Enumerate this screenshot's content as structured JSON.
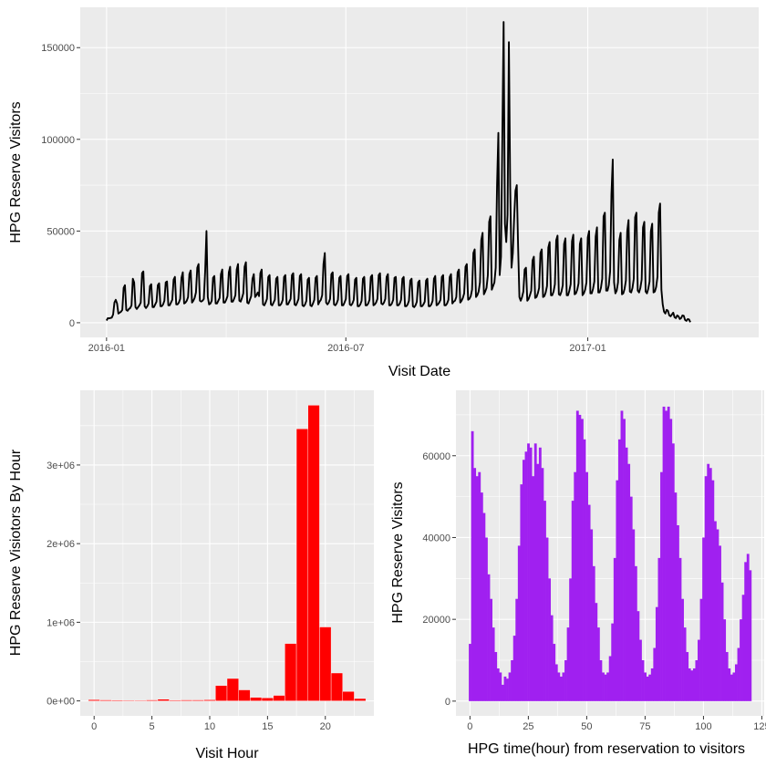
{
  "chart_data": [
    {
      "type": "line",
      "title": "",
      "xlabel": "Visit Date",
      "ylabel": "HPG Reserve Visitors",
      "xlim": [
        "2015-12-12",
        "2017-05-11"
      ],
      "ylim": [
        -8000,
        172000
      ],
      "x_ticks": [
        {
          "date": "2016-01-01",
          "label": "2016-01"
        },
        {
          "date": "2016-07-01",
          "label": "2016-07"
        },
        {
          "date": "2017-01-01",
          "label": "2017-01"
        }
      ],
      "y_ticks": [
        {
          "value": 0,
          "label": "0"
        },
        {
          "value": 50000,
          "label": "50000"
        },
        {
          "value": 100000,
          "label": "100000"
        },
        {
          "value": 150000,
          "label": "150000"
        }
      ],
      "series": [
        {
          "name": "HPG Reserve Visitors",
          "color": "#000000",
          "start_date": "2016-01-01",
          "values": [
            1200,
            2500,
            2400,
            2600,
            2800,
            4500,
            11000,
            12500,
            10500,
            5000,
            5500,
            6000,
            7000,
            19000,
            20500,
            7000,
            6500,
            7500,
            8000,
            9500,
            24000,
            22000,
            8500,
            7500,
            8500,
            9500,
            11000,
            27000,
            28000,
            9000,
            8000,
            9000,
            10500,
            20000,
            21000,
            8500,
            8500,
            10000,
            11500,
            20500,
            21500,
            9000,
            9000,
            10000,
            12000,
            22000,
            22500,
            9500,
            9500,
            11000,
            12500,
            23500,
            25000,
            10000,
            10000,
            11000,
            13000,
            24500,
            27500,
            10500,
            11000,
            12000,
            14000,
            26500,
            28500,
            11000,
            12000,
            13500,
            16500,
            30000,
            32000,
            12000,
            11500,
            12000,
            13000,
            28000,
            50000,
            14000,
            10000,
            10500,
            12000,
            24500,
            25500,
            10500,
            10500,
            12000,
            13500,
            26500,
            29000,
            11000,
            11000,
            12500,
            14500,
            27500,
            30500,
            11500,
            11500,
            13000,
            15000,
            29000,
            32000,
            12000,
            11500,
            13500,
            16000,
            30500,
            33000,
            11000,
            10500,
            12500,
            14500,
            24000,
            26500,
            14000,
            15000,
            16500,
            14500,
            27000,
            29000,
            10000,
            9500,
            11000,
            13000,
            25000,
            26000,
            10000,
            9500,
            11000,
            12500,
            24000,
            25000,
            9500,
            9500,
            10500,
            12500,
            25000,
            26000,
            10000,
            10000,
            11500,
            13000,
            26000,
            27000,
            10000,
            9500,
            11000,
            13000,
            25500,
            26500,
            9500,
            9000,
            10000,
            12000,
            23500,
            24500,
            9500,
            9000,
            10500,
            12500,
            24500,
            25500,
            10000,
            11500,
            12500,
            15000,
            32000,
            38000,
            11000,
            10000,
            11000,
            13000,
            26500,
            27500,
            10000,
            9500,
            10500,
            12500,
            24500,
            25500,
            9500,
            9500,
            11000,
            13000,
            25500,
            26500,
            10000,
            9500,
            10500,
            12500,
            23500,
            24500,
            9000,
            9000,
            10000,
            12000,
            24000,
            25000,
            9500,
            9500,
            10500,
            12500,
            25000,
            26000,
            9500,
            10000,
            11000,
            13000,
            26000,
            27000,
            10500,
            10000,
            11000,
            13000,
            25000,
            26500,
            9500,
            9500,
            10500,
            12500,
            24500,
            25000,
            9500,
            9500,
            10500,
            12500,
            24000,
            25000,
            9000,
            9000,
            10000,
            12000,
            23000,
            24000,
            9000,
            8500,
            9500,
            11500,
            22000,
            23000,
            9000,
            9000,
            10000,
            11500,
            23000,
            24000,
            9000,
            9000,
            10000,
            12000,
            24000,
            25500,
            9500,
            10000,
            11000,
            12500,
            25000,
            26000,
            9500,
            9500,
            10500,
            12500,
            25000,
            26500,
            10500,
            11500,
            12000,
            14000,
            27500,
            29000,
            11000,
            12000,
            13500,
            16000,
            30500,
            32000,
            12500,
            13000,
            14500,
            18000,
            38000,
            40000,
            14000,
            15000,
            17000,
            22000,
            45000,
            49000,
            15500,
            17000,
            19000,
            26000,
            55000,
            58000,
            18000,
            20000,
            22000,
            30000,
            75000,
            103500,
            26000,
            36000,
            100000,
            164000,
            54000,
            44000,
            59000,
            153000,
            74000,
            30000,
            38000,
            57000,
            72000,
            75000,
            42000,
            14000,
            12000,
            14000,
            17000,
            29000,
            30000,
            12000,
            13000,
            15000,
            17500,
            34000,
            36000,
            13500,
            14000,
            16000,
            19000,
            38000,
            40000,
            14000,
            14500,
            16500,
            20000,
            41000,
            44000,
            15000,
            15000,
            17000,
            21000,
            45000,
            47500,
            15500,
            15000,
            17000,
            20500,
            43000,
            46000,
            15000,
            15000,
            17500,
            21000,
            44500,
            48000,
            15500,
            16000,
            18000,
            21500,
            43000,
            46000,
            15000,
            16000,
            18000,
            22000,
            46500,
            50000,
            16000,
            16000,
            18500,
            22500,
            47000,
            52000,
            16500,
            16500,
            19000,
            24000,
            58000,
            60000,
            17500,
            17500,
            20500,
            28000,
            70000,
            89000,
            22000,
            16000,
            17500,
            22000,
            45000,
            49000,
            15500,
            16000,
            18500,
            23000,
            50000,
            56000,
            17000,
            16500,
            19000,
            24000,
            57500,
            60000,
            17500,
            16500,
            19000,
            23500,
            52000,
            55000,
            17000,
            16000,
            18500,
            22500,
            50000,
            54000,
            16500,
            17000,
            19500,
            25000,
            60000,
            65000,
            18000,
            10000,
            6000,
            5000,
            7000,
            6500,
            4000,
            3500,
            4500,
            5500,
            3000,
            2500,
            4000,
            3500,
            2000,
            2500,
            4000,
            3800,
            1500,
            1000,
            2000,
            1800,
            300
          ]
        }
      ]
    },
    {
      "type": "bar",
      "title": "",
      "xlabel": "Visit Hour",
      "ylabel": "HPG Reserve Visiotors By Hour",
      "xlim": [
        -1.2,
        24.2
      ],
      "ylim": [
        -190000,
        3950000
      ],
      "x_ticks": [
        0,
        5,
        10,
        15,
        20
      ],
      "y_ticks": [
        {
          "value": 0,
          "label": "0e+00"
        },
        {
          "value": 1000000,
          "label": "1e+06"
        },
        {
          "value": 2000000,
          "label": "2e+06"
        },
        {
          "value": 3000000,
          "label": "3e+06"
        }
      ],
      "color": "#ff0000",
      "categories": [
        0,
        1,
        2,
        3,
        4,
        5,
        6,
        7,
        8,
        9,
        10,
        11,
        12,
        13,
        14,
        15,
        16,
        17,
        18,
        19,
        20,
        21,
        22,
        23
      ],
      "values": [
        15000,
        12000,
        10000,
        5000,
        6000,
        12000,
        22000,
        10000,
        12000,
        12000,
        14000,
        195000,
        285000,
        140000,
        45000,
        38000,
        70000,
        730000,
        3460000,
        3760000,
        940000,
        355000,
        120000,
        30000
      ]
    },
    {
      "type": "bar",
      "title": "",
      "xlabel": "HPG time(hour) from reservation to visitors",
      "ylabel": "HPG Reserve Visitors",
      "xlim": [
        -6,
        126
      ],
      "ylim": [
        -3600,
        76000
      ],
      "x_ticks": [
        0,
        25,
        50,
        75,
        100,
        125
      ],
      "y_ticks": [
        0,
        20000,
        40000,
        60000
      ],
      "color": "#a020f0",
      "x_start": 0,
      "values": [
        14000,
        66000,
        57000,
        55000,
        56000,
        51000,
        46000,
        40000,
        31000,
        25000,
        18000,
        12000,
        8000,
        7000,
        4000,
        6000,
        5500,
        7000,
        10000,
        16000,
        25000,
        38000,
        53000,
        59000,
        61000,
        63000,
        62000,
        55000,
        63000,
        58000,
        62000,
        57000,
        49000,
        40000,
        30000,
        21000,
        14000,
        9000,
        7000,
        6000,
        7000,
        10000,
        18000,
        30000,
        49000,
        56000,
        71000,
        70000,
        69000,
        64000,
        56000,
        48000,
        42000,
        33000,
        24000,
        18000,
        10000,
        7000,
        6500,
        7000,
        11000,
        19000,
        35000,
        54000,
        64000,
        71000,
        69000,
        62000,
        58000,
        50000,
        42000,
        33000,
        22000,
        15000,
        10000,
        7000,
        6000,
        6500,
        8000,
        13000,
        23000,
        35000,
        56000,
        72000,
        71000,
        72000,
        69000,
        63000,
        51000,
        43000,
        35000,
        25000,
        18000,
        12000,
        8000,
        7500,
        8000,
        10000,
        15000,
        25000,
        40000,
        55000,
        58000,
        57000,
        54000,
        44000,
        42000,
        38000,
        29000,
        20000,
        12000,
        8000,
        6500,
        7000,
        9000,
        13000,
        20000,
        26000,
        34000,
        36000,
        32000
      ]
    }
  ]
}
